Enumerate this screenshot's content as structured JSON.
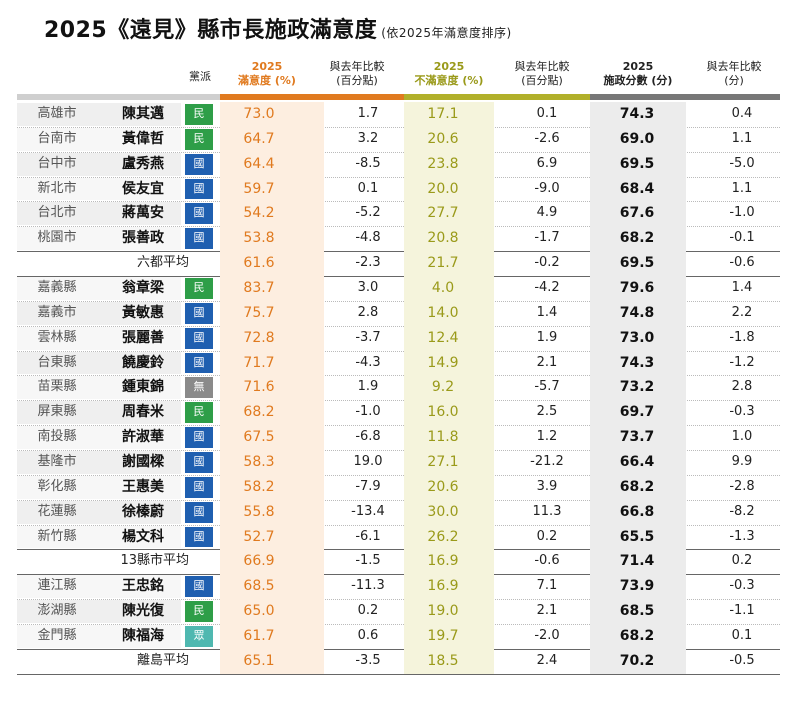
{
  "title": {
    "main": "2025《遠見》縣市長施政滿意度",
    "sub": "(依2025年滿意度排序)"
  },
  "colors": {
    "orange": "#e07a1f",
    "olive": "#9a9a1a",
    "dpp": "#2e9e48",
    "kmt": "#1f5fb0",
    "ind": "#8a8a8a",
    "pfp": "#4fb8b0",
    "score_bar": "#777777"
  },
  "chart_data": {
    "type": "table",
    "headers": {
      "party": "黨派",
      "sat_year": "2025",
      "sat_label": "滿意度 (%)",
      "sat_change_1": "與去年比較",
      "sat_change_2": "(百分點)",
      "dis_year": "2025",
      "dis_label": "不滿意度 (%)",
      "dis_change_1": "與去年比較",
      "dis_change_2": "(百分點)",
      "score_year": "2025",
      "score_label": "施政分數 (分)",
      "score_change_1": "與去年比較",
      "score_change_2": "(分)"
    },
    "rows": [
      {
        "kind": "row",
        "city": "高雄市",
        "name": "陳其邁",
        "party": "民",
        "pk": "dpp",
        "sat": "73.0",
        "sat_d": "1.7",
        "dis": "17.1",
        "dis_d": "0.1",
        "score": "74.3",
        "score_d": "0.4"
      },
      {
        "kind": "row",
        "city": "台南市",
        "name": "黃偉哲",
        "party": "民",
        "pk": "dpp",
        "sat": "64.7",
        "sat_d": "3.2",
        "dis": "20.6",
        "dis_d": "-2.6",
        "score": "69.0",
        "score_d": "1.1"
      },
      {
        "kind": "row",
        "city": "台中市",
        "name": "盧秀燕",
        "party": "國",
        "pk": "kmt",
        "sat": "64.4",
        "sat_d": "-8.5",
        "dis": "23.8",
        "dis_d": "6.9",
        "score": "69.5",
        "score_d": "-5.0"
      },
      {
        "kind": "row",
        "city": "新北市",
        "name": "侯友宜",
        "party": "國",
        "pk": "kmt",
        "sat": "59.7",
        "sat_d": "0.1",
        "dis": "20.0",
        "dis_d": "-9.0",
        "score": "68.4",
        "score_d": "1.1"
      },
      {
        "kind": "row",
        "city": "台北市",
        "name": "蔣萬安",
        "party": "國",
        "pk": "kmt",
        "sat": "54.2",
        "sat_d": "-5.2",
        "dis": "27.7",
        "dis_d": "4.9",
        "score": "67.6",
        "score_d": "-1.0"
      },
      {
        "kind": "row",
        "city": "桃園市",
        "name": "張善政",
        "party": "國",
        "pk": "kmt",
        "sat": "53.8",
        "sat_d": "-4.8",
        "dis": "20.8",
        "dis_d": "-1.7",
        "score": "68.2",
        "score_d": "-0.1"
      },
      {
        "kind": "avg",
        "label": "六都平均",
        "sat": "61.6",
        "sat_d": "-2.3",
        "dis": "21.7",
        "dis_d": "-0.2",
        "score": "69.5",
        "score_d": "-0.6"
      },
      {
        "kind": "row",
        "city": "嘉義縣",
        "name": "翁章梁",
        "party": "民",
        "pk": "dpp",
        "sat": "83.7",
        "sat_d": "3.0",
        "dis": "4.0",
        "dis_d": "-4.2",
        "score": "79.6",
        "score_d": "1.4"
      },
      {
        "kind": "row",
        "city": "嘉義市",
        "name": "黃敏惠",
        "party": "國",
        "pk": "kmt",
        "sat": "75.7",
        "sat_d": "2.8",
        "dis": "14.0",
        "dis_d": "1.4",
        "score": "74.8",
        "score_d": "2.2"
      },
      {
        "kind": "row",
        "city": "雲林縣",
        "name": "張麗善",
        "party": "國",
        "pk": "kmt",
        "sat": "72.8",
        "sat_d": "-3.7",
        "dis": "12.4",
        "dis_d": "1.9",
        "score": "73.0",
        "score_d": "-1.8"
      },
      {
        "kind": "row",
        "city": "台東縣",
        "name": "饒慶鈴",
        "party": "國",
        "pk": "kmt",
        "sat": "71.7",
        "sat_d": "-4.3",
        "dis": "14.9",
        "dis_d": "2.1",
        "score": "74.3",
        "score_d": "-1.2"
      },
      {
        "kind": "row",
        "city": "苗栗縣",
        "name": "鍾東錦",
        "party": "無",
        "pk": "ind",
        "sat": "71.6",
        "sat_d": "1.9",
        "dis": "9.2",
        "dis_d": "-5.7",
        "score": "73.2",
        "score_d": "2.8"
      },
      {
        "kind": "row",
        "city": "屏東縣",
        "name": "周春米",
        "party": "民",
        "pk": "dpp",
        "sat": "68.2",
        "sat_d": "-1.0",
        "dis": "16.0",
        "dis_d": "2.5",
        "score": "69.7",
        "score_d": "-0.3"
      },
      {
        "kind": "row",
        "city": "南投縣",
        "name": "許淑華",
        "party": "國",
        "pk": "kmt",
        "sat": "67.5",
        "sat_d": "-6.8",
        "dis": "11.8",
        "dis_d": "1.2",
        "score": "73.7",
        "score_d": "1.0"
      },
      {
        "kind": "row",
        "city": "基隆市",
        "name": "謝國樑",
        "party": "國",
        "pk": "kmt",
        "sat": "58.3",
        "sat_d": "19.0",
        "dis": "27.1",
        "dis_d": "-21.2",
        "score": "66.4",
        "score_d": "9.9"
      },
      {
        "kind": "row",
        "city": "彰化縣",
        "name": "王惠美",
        "party": "國",
        "pk": "kmt",
        "sat": "58.2",
        "sat_d": "-7.9",
        "dis": "20.6",
        "dis_d": "3.9",
        "score": "68.2",
        "score_d": "-2.8"
      },
      {
        "kind": "row",
        "city": "花蓮縣",
        "name": "徐榛蔚",
        "party": "國",
        "pk": "kmt",
        "sat": "55.8",
        "sat_d": "-13.4",
        "dis": "30.0",
        "dis_d": "11.3",
        "score": "66.8",
        "score_d": "-8.2"
      },
      {
        "kind": "row",
        "city": "新竹縣",
        "name": "楊文科",
        "party": "國",
        "pk": "kmt",
        "sat": "52.7",
        "sat_d": "-6.1",
        "dis": "26.2",
        "dis_d": "0.2",
        "score": "65.5",
        "score_d": "-1.3"
      },
      {
        "kind": "avg",
        "label": "13縣市平均",
        "sat": "66.9",
        "sat_d": "-1.5",
        "dis": "16.9",
        "dis_d": "-0.6",
        "score": "71.4",
        "score_d": "0.2"
      },
      {
        "kind": "row",
        "city": "連江縣",
        "name": "王忠銘",
        "party": "國",
        "pk": "kmt",
        "sat": "68.5",
        "sat_d": "-11.3",
        "dis": "16.9",
        "dis_d": "7.1",
        "score": "73.9",
        "score_d": "-0.3"
      },
      {
        "kind": "row",
        "city": "澎湖縣",
        "name": "陳光復",
        "party": "民",
        "pk": "dpp",
        "sat": "65.0",
        "sat_d": "0.2",
        "dis": "19.0",
        "dis_d": "2.1",
        "score": "68.5",
        "score_d": "-1.1"
      },
      {
        "kind": "row",
        "city": "金門縣",
        "name": "陳福海",
        "party": "眾",
        "pk": "pfp",
        "sat": "61.7",
        "sat_d": "0.6",
        "dis": "19.7",
        "dis_d": "-2.0",
        "score": "68.2",
        "score_d": "0.1"
      },
      {
        "kind": "avg",
        "label": "離島平均",
        "sat": "65.1",
        "sat_d": "-3.5",
        "dis": "18.5",
        "dis_d": "2.4",
        "score": "70.2",
        "score_d": "-0.5"
      }
    ]
  }
}
